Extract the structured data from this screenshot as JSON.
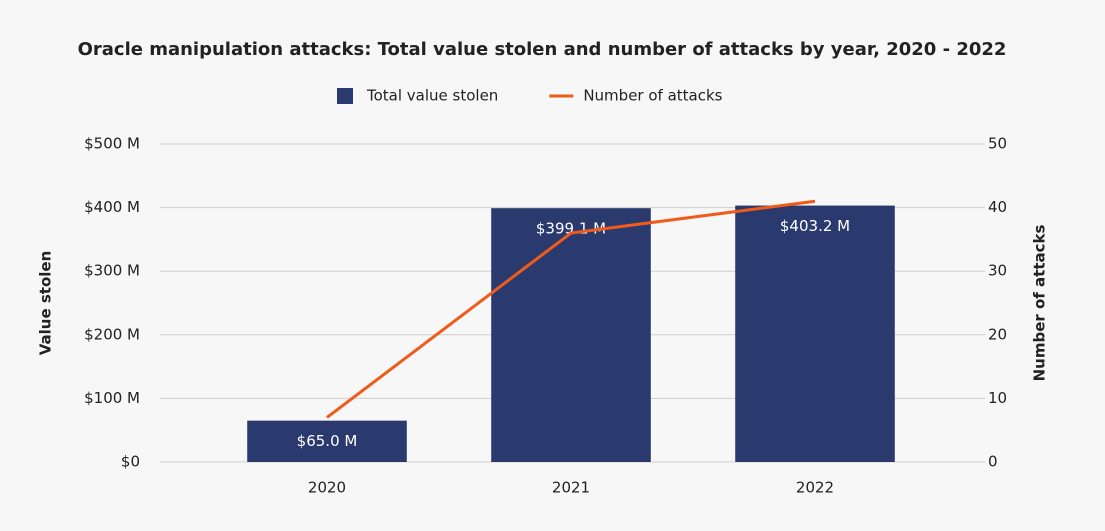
{
  "chart_data": {
    "type": "bar",
    "title": "Oracle manipulation attacks: Total value stolen and number of attacks by year, 2020 - 2022",
    "categories": [
      "2020",
      "2021",
      "2022"
    ],
    "series": [
      {
        "name": "Total value stolen",
        "type": "bar",
        "color": "#2b3a6e",
        "values": [
          65.0,
          399.1,
          403.2
        ],
        "value_labels": [
          "$65.0 M",
          "$399.1 M",
          "$403.2 M"
        ]
      },
      {
        "name": "Number of attacks",
        "type": "line",
        "color": "#f05a1a",
        "axis": "y2",
        "values": [
          7,
          36,
          41
        ]
      }
    ],
    "ylabel": "Value stolen",
    "y2label": "Number of attacks",
    "ylim": [
      0,
      500
    ],
    "yticks": [
      {
        "value": 0,
        "label": "$0"
      },
      {
        "value": 100,
        "label": "$100 M"
      },
      {
        "value": 200,
        "label": "$200 M"
      },
      {
        "value": 300,
        "label": "$300 M"
      },
      {
        "value": 400,
        "label": "$400 M"
      },
      {
        "value": 500,
        "label": "$500 M"
      }
    ],
    "y2lim": [
      0,
      50
    ],
    "y2ticks": [
      0,
      10,
      20,
      30,
      40,
      50
    ],
    "grid": true,
    "legend": "top"
  }
}
